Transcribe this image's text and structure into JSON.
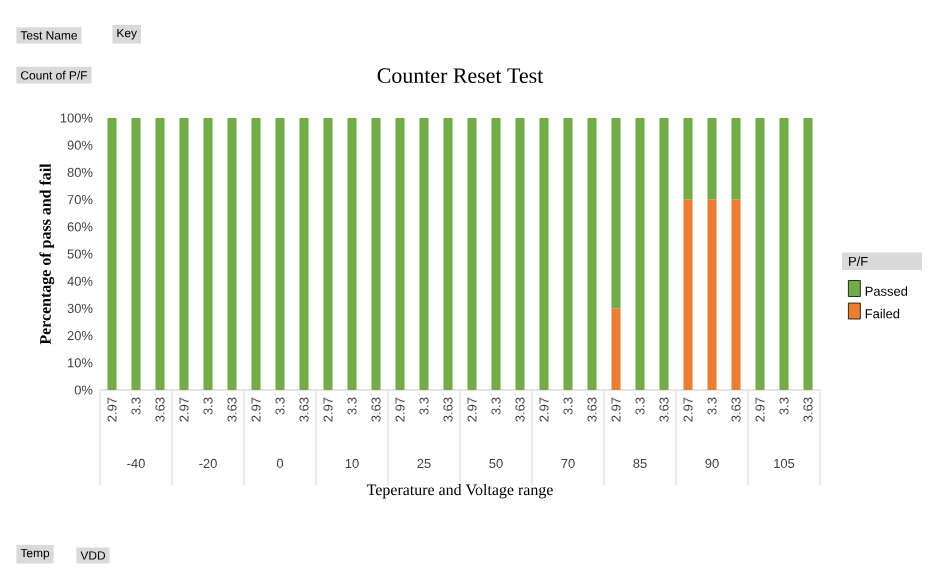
{
  "chart_data": {
    "type": "bar",
    "stacked": true,
    "title": "Counter Reset Test",
    "xlabel": "Teperature and Voltage range",
    "ylabel": "Percentage of pass and fail",
    "legend_title": "P/F",
    "legend": "right",
    "categories": [
      "2.97",
      "3.3",
      "3.63",
      "2.97",
      "3.3",
      "3.63",
      "2.97",
      "3.3",
      "3.63",
      "2.97",
      "3.3",
      "3.63",
      "2.97",
      "3.3",
      "3.63",
      "2.97",
      "3.3",
      "3.63",
      "2.97",
      "3.3",
      "3.63",
      "2.97",
      "3.3",
      "3.63",
      "2.97",
      "3.3",
      "3.63",
      "2.97",
      "3.3",
      "3.63"
    ],
    "series": [
      {
        "name": "Failed",
        "color": "#ed7d31",
        "values": [
          0,
          0,
          0,
          0,
          0,
          0,
          0,
          0,
          0,
          0,
          0,
          0,
          0,
          0,
          0,
          0,
          0,
          0,
          0,
          0,
          0,
          30,
          0,
          0,
          70,
          70,
          70,
          0,
          0,
          0
        ]
      },
      {
        "name": "Passed",
        "color": "#70ad47",
        "values": [
          100,
          100,
          100,
          100,
          100,
          100,
          100,
          100,
          100,
          100,
          100,
          100,
          100,
          100,
          100,
          100,
          100,
          100,
          100,
          100,
          100,
          70,
          100,
          100,
          30,
          30,
          30,
          100,
          100,
          100
        ]
      }
    ],
    "ylim": [
      0,
      100
    ],
    "yticks": [
      {
        "value": 0,
        "label": "0%"
      },
      {
        "value": 10,
        "label": "10%"
      },
      {
        "value": 20,
        "label": "20%"
      },
      {
        "value": 30,
        "label": "30%"
      },
      {
        "value": 40,
        "label": "40%"
      },
      {
        "value": 50,
        "label": "50%"
      },
      {
        "value": 60,
        "label": "60%"
      },
      {
        "value": 70,
        "label": "70%"
      },
      {
        "value": 80,
        "label": "80%"
      },
      {
        "value": 90,
        "label": "90%"
      },
      {
        "value": 100,
        "label": "100%"
      }
    ],
    "annotations": [
      "-40",
      "-20",
      "0",
      "10",
      "25",
      "50",
      "70",
      "85",
      "90",
      "105",
      "Test Name",
      "Key",
      "Count of P/F",
      "Temp",
      "VDD"
    ]
  }
}
